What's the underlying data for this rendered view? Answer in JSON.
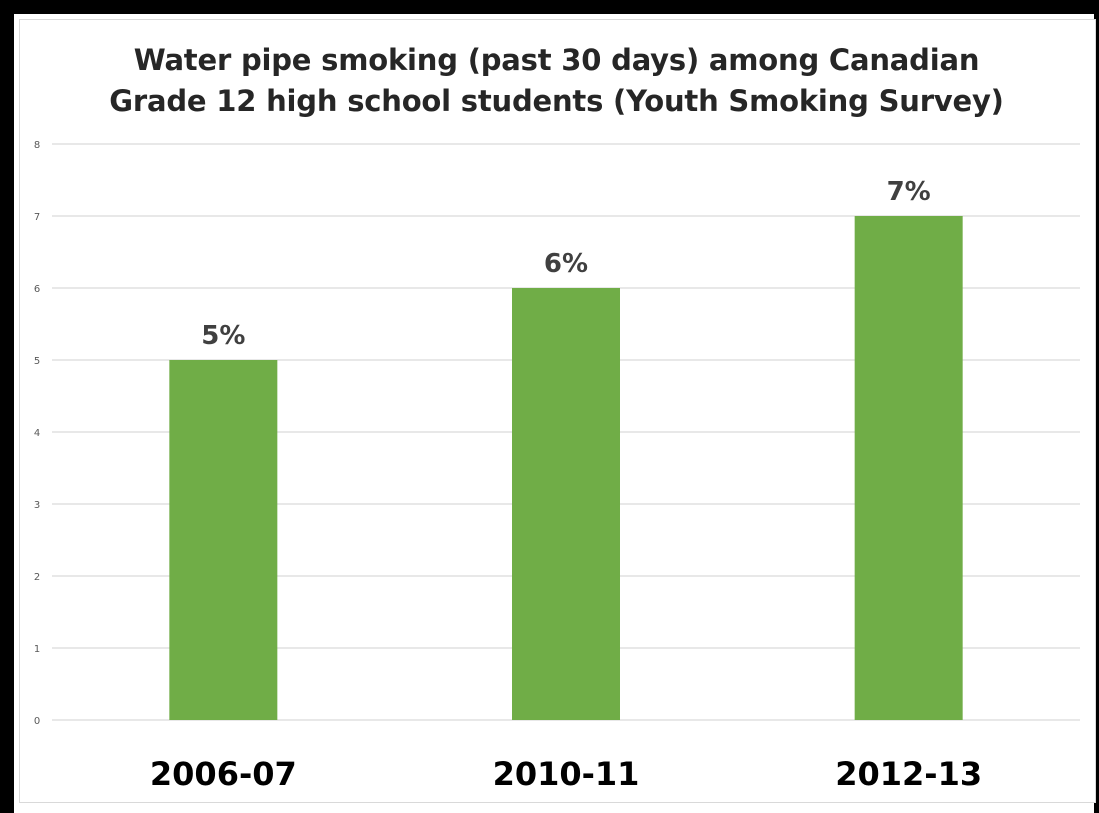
{
  "chart_data": {
    "type": "bar",
    "title_lines": [
      "Water pipe smoking (past 30 days) among Canadian",
      "Grade 12 high school students (Youth Smoking Survey)"
    ],
    "categories": [
      "2006-07",
      "2010-11",
      "2012-13"
    ],
    "values": [
      5,
      6,
      7
    ],
    "data_labels": [
      "5%",
      "6%",
      "7%"
    ],
    "xlabel": "",
    "ylabel": "",
    "ylim": [
      0,
      8
    ],
    "yticks": [
      "0",
      "1",
      "2",
      "3",
      "4",
      "5",
      "6",
      "7",
      "8"
    ],
    "grid": true,
    "legend": "none",
    "bar_color": "#70ad47",
    "gridline_color": "#d9d9d9"
  }
}
